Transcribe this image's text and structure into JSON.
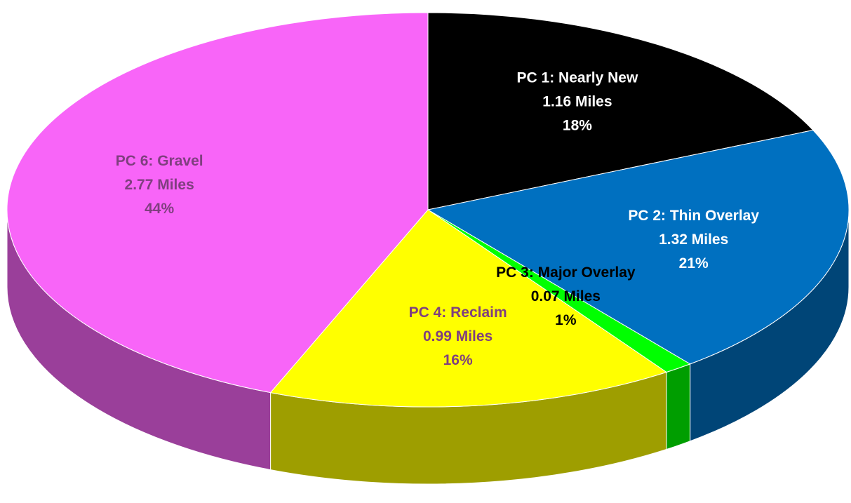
{
  "chart_data": {
    "type": "pie3d",
    "categories": [
      "PC 1: Nearly New",
      "PC 2: Thin Overlay",
      "PC 3: Major Overlay",
      "PC 4: Reclaim",
      "PC 6: Gravel"
    ],
    "values": [
      1.16,
      1.32,
      0.07,
      0.99,
      2.77
    ],
    "value_labels": [
      "1.16 Miles",
      "1.32 Miles",
      "0.07 Miles",
      "0.99 Miles",
      "2.77 Miles"
    ],
    "percent_labels": [
      "18%",
      "21%",
      "1%",
      "16%",
      "44%"
    ],
    "colors": [
      "#000000",
      "#0070c0",
      "#00ff00",
      "#ffff00",
      "#f865f8"
    ],
    "label_colors": [
      "#ffffff",
      "#ffffff",
      "#000000",
      "#7f3f7f",
      "#7f3f7f"
    ]
  }
}
